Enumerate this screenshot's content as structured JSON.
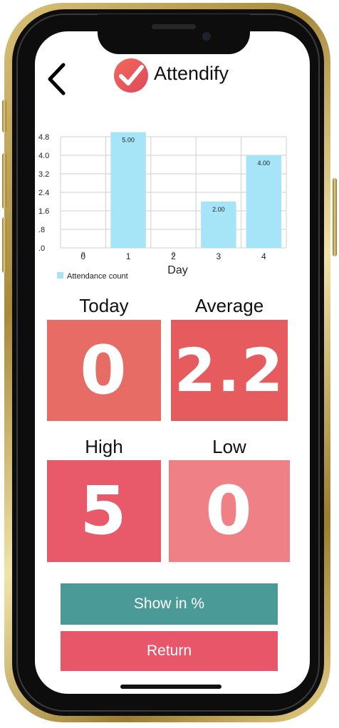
{
  "header": {
    "back_icon": "chevron-left-icon",
    "logo_icon": "checkmark-circle-icon",
    "title": "Attendify"
  },
  "chart_data": {
    "type": "bar",
    "categories": [
      "0",
      "1",
      "2",
      "3",
      "4"
    ],
    "x_tick_labels": [
      "0",
      "1",
      "2",
      "3",
      "4"
    ],
    "values": [
      0,
      5.0,
      0,
      2.0,
      4.0
    ],
    "value_labels": [
      "0",
      "5.00",
      "0",
      "2.00",
      "4.00"
    ],
    "y_ticks": [
      ".0",
      ".8",
      "1.6",
      "2.4",
      "3.2",
      "4.0",
      "4.8"
    ],
    "ylim": [
      0,
      4.8
    ],
    "xlabel": "Day",
    "ylabel": "",
    "legend": {
      "label": "Attendance count",
      "placement": "bottom-left"
    },
    "grid": true,
    "bar_color": "#a6e5f8"
  },
  "stats": {
    "today": {
      "label": "Today",
      "value": "0"
    },
    "average": {
      "label": "Average",
      "value": "2.2"
    },
    "high": {
      "label": "High",
      "value": "5"
    },
    "low": {
      "label": "Low",
      "value": "0"
    }
  },
  "buttons": {
    "show_percent": "Show in %",
    "return": "Return"
  },
  "colors": {
    "tile_today": "#e86c66",
    "tile_average": "#e65b5d",
    "tile_high": "#e85a6a",
    "tile_low": "#ee8086",
    "button_show_percent": "#4a9a98",
    "button_return": "#e8566a"
  }
}
